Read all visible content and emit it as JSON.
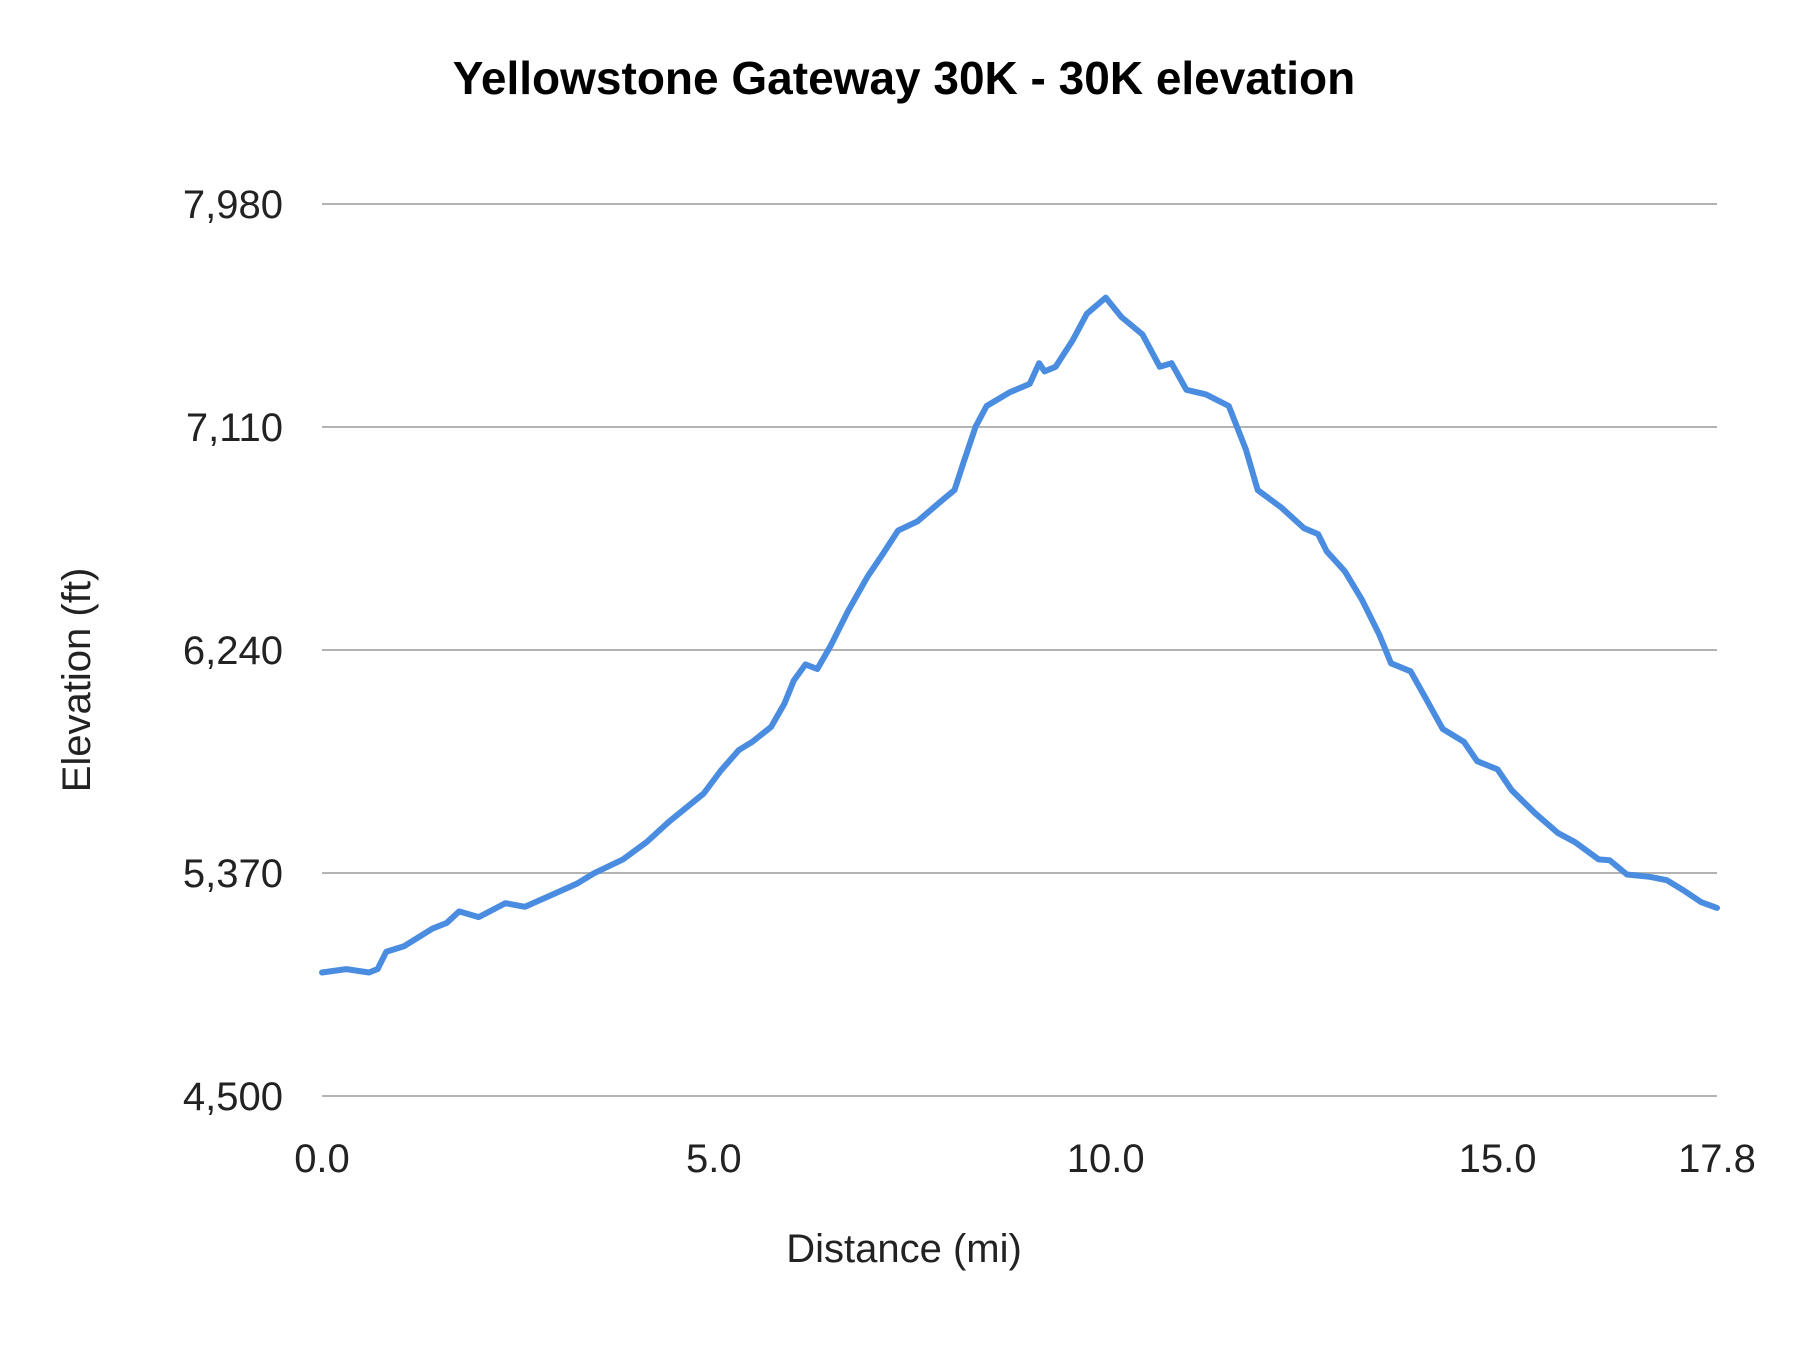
{
  "chart_data": {
    "type": "line",
    "title": "Yellowstone Gateway 30K - 30K elevation",
    "xlabel": "Distance (mi)",
    "ylabel": "Elevation (ft)",
    "xlim": [
      0,
      17.8
    ],
    "ylim": [
      4500,
      7980
    ],
    "xticks": [
      0,
      5,
      10,
      15,
      17.8
    ],
    "xtick_labels": [
      "0.0",
      "5.0",
      "10.0",
      "15.0",
      "17.8"
    ],
    "yticks": [
      4500,
      5370,
      6240,
      7110,
      7980
    ],
    "ytick_labels": [
      "4,500",
      "5,370",
      "6,240",
      "7,110",
      "7,980"
    ],
    "grid": "horizontal",
    "colors": {
      "line": "#4a8de0",
      "grid": "#b3b3b3"
    },
    "series": [
      {
        "x": [
          0,
          0.31,
          0.6,
          0.71,
          0.82,
          1.05,
          1.41,
          1.59,
          1.75,
          2.0,
          2.34,
          2.59,
          3.25,
          3.47,
          3.84,
          4.14,
          4.43,
          4.87,
          5.09,
          5.32,
          5.49,
          5.73,
          5.9,
          6.02,
          6.17,
          6.32,
          6.49,
          6.71,
          6.96,
          7.16,
          7.35,
          7.6,
          7.89,
          8.07,
          8.19,
          8.34,
          8.48,
          8.78,
          9.03,
          9.15,
          9.22,
          9.36,
          9.58,
          9.76,
          10.0,
          10.2,
          10.47,
          10.69,
          10.84,
          11.03,
          11.28,
          11.57,
          11.79,
          11.94,
          12.24,
          12.53,
          12.71,
          12.82,
          13.05,
          13.27,
          13.49,
          13.64,
          13.89,
          14.08,
          14.3,
          14.57,
          14.74,
          15.0,
          15.18,
          15.48,
          15.77,
          15.99,
          16.29,
          16.43,
          16.65,
          16.94,
          17.16,
          17.38,
          17.6,
          17.8
        ],
        "y": [
          4982,
          4995,
          4982,
          4995,
          5063,
          5085,
          5153,
          5175,
          5220,
          5198,
          5252,
          5238,
          5328,
          5369,
          5423,
          5490,
          5571,
          5680,
          5770,
          5850,
          5882,
          5940,
          6031,
          6121,
          6184,
          6166,
          6256,
          6391,
          6526,
          6616,
          6706,
          6742,
          6818,
          6864,
          6976,
          7111,
          7192,
          7246,
          7278,
          7359,
          7327,
          7345,
          7449,
          7552,
          7615,
          7539,
          7471,
          7345,
          7359,
          7255,
          7237,
          7192,
          7021,
          6864,
          6796,
          6715,
          6692,
          6625,
          6548,
          6436,
          6301,
          6188,
          6157,
          6053,
          5932,
          5882,
          5806,
          5774,
          5693,
          5603,
          5526,
          5490,
          5423,
          5420,
          5364,
          5355,
          5342,
          5301,
          5256,
          5234
        ]
      }
    ]
  }
}
